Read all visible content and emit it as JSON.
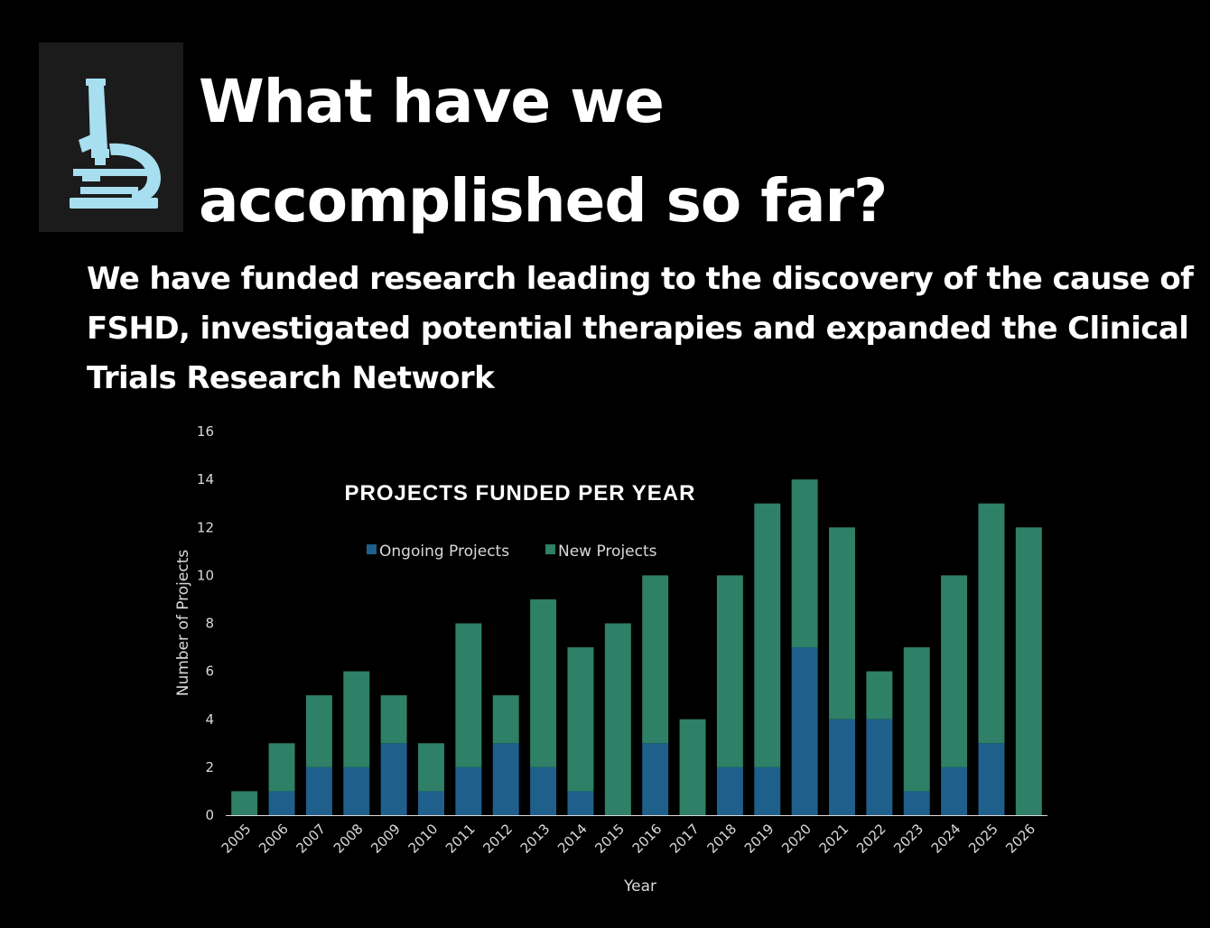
{
  "slide": {
    "title_line1": "What have we",
    "title_line2": "accomplished so far?",
    "subtitle_line1": "We have funded research leading to the discovery of the cause of",
    "subtitle_line2": "FSHD, investigated potential therapies and expanded the Clinical",
    "subtitle_line3": "Trials Research Network",
    "icon": "microscope-icon"
  },
  "colors": {
    "background": "#000000",
    "icon_color": "#a8dff0",
    "ongoing": "#1f5f8b",
    "new": "#2e8066",
    "axis": "#d9d9d9"
  },
  "chart_data": {
    "type": "bar",
    "stacked": true,
    "title": "PROJECTS FUNDED PER YEAR",
    "xlabel": "Year",
    "ylabel": "Number of Projects",
    "ylim": [
      0,
      16
    ],
    "yticks": [
      0,
      2,
      4,
      6,
      8,
      10,
      12,
      14,
      16
    ],
    "grid": false,
    "legend_position": "top",
    "categories": [
      "2005",
      "2006",
      "2007",
      "2008",
      "2009",
      "2010",
      "2011",
      "2012",
      "2013",
      "2014",
      "2015",
      "2016",
      "2017",
      "2018",
      "2019",
      "2020",
      "2021",
      "2022",
      "2023",
      "2024",
      "2025",
      "2026"
    ],
    "series": [
      {
        "name": "Ongoing Projects",
        "color": "#1f5f8b",
        "values": [
          0,
          1,
          2,
          2,
          3,
          1,
          2,
          3,
          2,
          1,
          0,
          3,
          0,
          2,
          2,
          7,
          4,
          4,
          1,
          2,
          3,
          0
        ]
      },
      {
        "name": "New Projects",
        "color": "#2e8066",
        "values": [
          1,
          2,
          3,
          4,
          2,
          2,
          6,
          2,
          7,
          6,
          8,
          7,
          4,
          8,
          11,
          7,
          8,
          2,
          6,
          8,
          10,
          12
        ]
      }
    ]
  }
}
